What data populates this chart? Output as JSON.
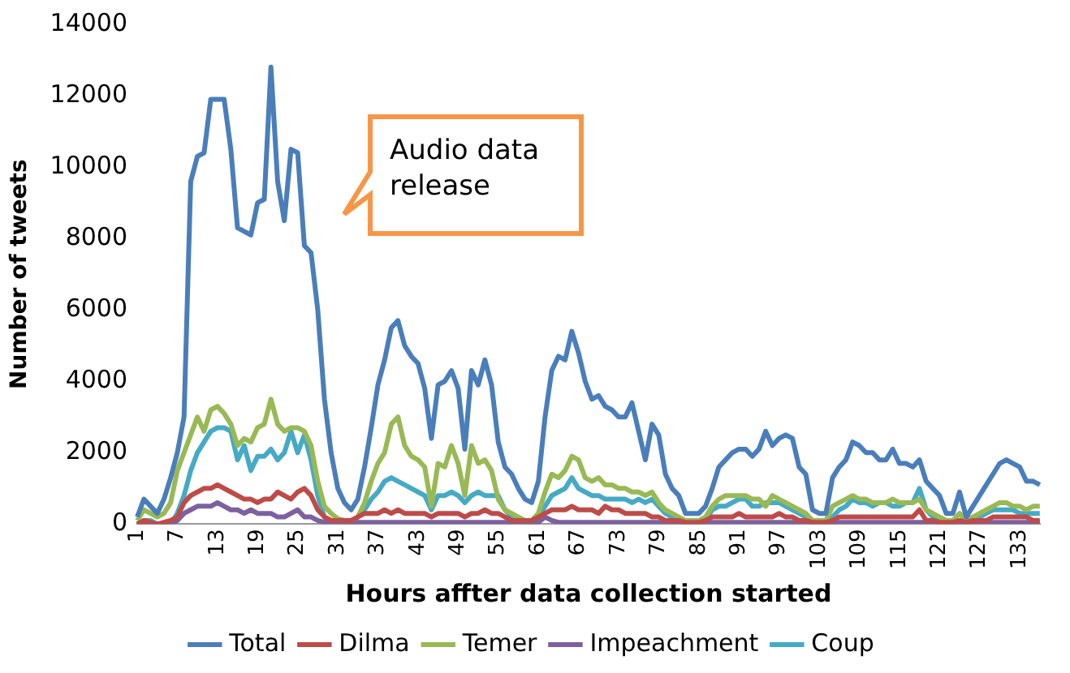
{
  "chart_data": {
    "type": "line",
    "xlabel": "Hours affter data collection started",
    "ylabel": "Number of tweets",
    "categories": [
      "1",
      null,
      null,
      null,
      null,
      null,
      "7",
      null,
      null,
      null,
      null,
      null,
      "13",
      null,
      null,
      null,
      null,
      null,
      "19",
      null,
      null,
      null,
      null,
      null,
      "25",
      null,
      null,
      null,
      null,
      null,
      "31",
      null,
      null,
      null,
      null,
      null,
      "37",
      null,
      null,
      null,
      null,
      null,
      "43",
      null,
      null,
      null,
      null,
      null,
      "49",
      null,
      null,
      null,
      null,
      null,
      "55",
      null,
      null,
      null,
      null,
      null,
      "61",
      null,
      null,
      null,
      null,
      null,
      "67",
      null,
      null,
      null,
      null,
      null,
      "73",
      null,
      null,
      null,
      null,
      null,
      "79",
      null,
      null,
      null,
      null,
      null,
      "85",
      null,
      null,
      null,
      null,
      null,
      "91",
      null,
      null,
      null,
      null,
      null,
      "97",
      null,
      null,
      null,
      null,
      null,
      "103",
      null,
      null,
      null,
      null,
      null,
      "109",
      null,
      null,
      null,
      null,
      null,
      "115",
      null,
      null,
      null,
      null,
      null,
      "121",
      null,
      null,
      null,
      null,
      null,
      "127",
      null,
      null,
      null,
      null,
      null,
      "133",
      null,
      null,
      null
    ],
    "series": [
      {
        "name": "Total",
        "color": "#4a7ebb",
        "values": [
          200,
          700,
          500,
          300,
          700,
          1300,
          2000,
          3000,
          9600,
          10300,
          10400,
          11900,
          11900,
          11900,
          10500,
          8300,
          8200,
          8100,
          9000,
          9100,
          12800,
          9600,
          8500,
          10500,
          10400,
          7800,
          7600,
          6000,
          3500,
          2000,
          1000,
          600,
          400,
          700,
          1600,
          2700,
          3900,
          4600,
          5500,
          5700,
          5000,
          4700,
          4500,
          3800,
          2400,
          3900,
          4000,
          4300,
          3800,
          2100,
          4300,
          3900,
          4600,
          3900,
          2300,
          1600,
          1400,
          1000,
          700,
          600,
          1200,
          3000,
          4300,
          4700,
          4600,
          5400,
          4800,
          4000,
          3500,
          3600,
          3300,
          3200,
          3000,
          3000,
          3400,
          2600,
          1800,
          2800,
          2500,
          1400,
          1000,
          800,
          300,
          300,
          300,
          500,
          1000,
          1600,
          1800,
          2000,
          2100,
          2100,
          1900,
          2100,
          2600,
          2200,
          2400,
          2500,
          2400,
          1600,
          1400,
          400,
          300,
          300,
          1300,
          1600,
          1800,
          2300,
          2200,
          2000,
          2000,
          1800,
          1800,
          2100,
          1700,
          1700,
          1600,
          1800,
          1200,
          1000,
          800,
          300,
          300,
          900,
          200,
          500,
          800,
          1100,
          1400,
          1700,
          1800,
          1700,
          1600,
          1200,
          1200,
          1100
        ]
      },
      {
        "name": "Dilma",
        "color": "#be4b48",
        "values": [
          0,
          100,
          50,
          0,
          50,
          100,
          200,
          600,
          800,
          900,
          1000,
          1000,
          1100,
          1000,
          900,
          800,
          700,
          700,
          600,
          700,
          700,
          900,
          800,
          700,
          900,
          1000,
          800,
          400,
          200,
          100,
          100,
          100,
          100,
          200,
          300,
          300,
          300,
          400,
          300,
          400,
          300,
          300,
          300,
          300,
          200,
          300,
          300,
          300,
          300,
          200,
          300,
          300,
          400,
          300,
          300,
          200,
          100,
          100,
          100,
          100,
          200,
          300,
          400,
          400,
          400,
          500,
          400,
          400,
          400,
          300,
          500,
          400,
          400,
          300,
          300,
          300,
          300,
          200,
          200,
          100,
          100,
          100,
          50,
          50,
          50,
          100,
          200,
          200,
          200,
          200,
          300,
          200,
          200,
          200,
          200,
          200,
          300,
          200,
          200,
          100,
          100,
          50,
          50,
          50,
          100,
          200,
          200,
          200,
          200,
          200,
          200,
          200,
          200,
          200,
          200,
          200,
          200,
          400,
          100,
          100,
          50,
          50,
          50,
          100,
          50,
          100,
          100,
          100,
          200,
          200,
          200,
          200,
          200,
          200,
          100,
          100
        ]
      },
      {
        "name": "Temer",
        "color": "#98b954",
        "values": [
          100,
          400,
          300,
          200,
          300,
          600,
          1500,
          2000,
          2500,
          3000,
          2600,
          3200,
          3300,
          3100,
          2800,
          2200,
          2400,
          2300,
          2700,
          2800,
          3500,
          2800,
          2600,
          2700,
          2700,
          2600,
          2200,
          1200,
          500,
          300,
          150,
          100,
          100,
          200,
          600,
          1200,
          1700,
          2000,
          2800,
          3000,
          2200,
          1900,
          1800,
          1600,
          500,
          1700,
          1600,
          2200,
          1700,
          800,
          2200,
          1700,
          1800,
          1500,
          700,
          400,
          300,
          200,
          100,
          100,
          300,
          900,
          1400,
          1300,
          1500,
          1900,
          1800,
          1300,
          1200,
          1300,
          1100,
          1100,
          1000,
          1000,
          900,
          900,
          800,
          900,
          600,
          400,
          300,
          200,
          100,
          100,
          100,
          200,
          500,
          700,
          800,
          800,
          800,
          800,
          700,
          700,
          500,
          800,
          700,
          600,
          500,
          400,
          300,
          100,
          100,
          100,
          500,
          600,
          700,
          800,
          700,
          700,
          600,
          600,
          600,
          700,
          600,
          600,
          600,
          700,
          400,
          300,
          200,
          100,
          100,
          300,
          100,
          200,
          300,
          400,
          500,
          600,
          600,
          500,
          500,
          400,
          500,
          500
        ]
      },
      {
        "name": "Impeachment",
        "color": "#7d60a0",
        "values": [
          0,
          0,
          0,
          0,
          0,
          0,
          100,
          300,
          400,
          500,
          500,
          500,
          600,
          500,
          400,
          400,
          300,
          400,
          300,
          300,
          300,
          200,
          200,
          300,
          400,
          200,
          200,
          100,
          50,
          50,
          50,
          50,
          50,
          50,
          50,
          50,
          50,
          50,
          50,
          50,
          50,
          50,
          50,
          50,
          50,
          50,
          50,
          50,
          50,
          50,
          50,
          50,
          50,
          50,
          50,
          50,
          50,
          50,
          50,
          50,
          50,
          200,
          100,
          50,
          50,
          50,
          50,
          50,
          50,
          50,
          50,
          50,
          50,
          50,
          50,
          50,
          50,
          50,
          50,
          50,
          50,
          50,
          50,
          50,
          50,
          50,
          50,
          50,
          50,
          50,
          50,
          50,
          50,
          50,
          50,
          50,
          50,
          50,
          50,
          50,
          50,
          50,
          50,
          50,
          50,
          50,
          50,
          50,
          50,
          50,
          50,
          50,
          50,
          50,
          50,
          50,
          50,
          50,
          50,
          50,
          50,
          50,
          50,
          50,
          50,
          50,
          50,
          50,
          50,
          50,
          50,
          50,
          50,
          50,
          50,
          50
        ]
      },
      {
        "name": "Coup",
        "color": "#46aac5",
        "values": [
          0,
          100,
          100,
          0,
          0,
          0,
          300,
          800,
          1500,
          2000,
          2300,
          2600,
          2700,
          2700,
          2600,
          1800,
          2200,
          1500,
          1900,
          1900,
          2100,
          1800,
          2000,
          2600,
          2000,
          2500,
          1800,
          800,
          200,
          100,
          0,
          0,
          0,
          200,
          400,
          700,
          900,
          1200,
          1300,
          1200,
          1100,
          1000,
          900,
          800,
          400,
          800,
          800,
          900,
          800,
          600,
          800,
          900,
          800,
          800,
          800,
          400,
          200,
          100,
          0,
          0,
          200,
          500,
          800,
          900,
          1000,
          1300,
          1000,
          900,
          800,
          800,
          700,
          700,
          700,
          700,
          600,
          700,
          600,
          700,
          500,
          300,
          200,
          100,
          0,
          0,
          0,
          100,
          400,
          500,
          500,
          600,
          700,
          700,
          500,
          500,
          600,
          600,
          600,
          500,
          400,
          300,
          200,
          100,
          0,
          0,
          200,
          400,
          500,
          700,
          600,
          600,
          500,
          600,
          600,
          500,
          500,
          600,
          600,
          1000,
          400,
          200,
          100,
          0,
          0,
          100,
          0,
          100,
          200,
          300,
          400,
          400,
          400,
          400,
          300,
          300,
          300,
          300
        ]
      }
    ],
    "ylim": [
      0,
      14000
    ],
    "yticks": [
      0,
      2000,
      4000,
      6000,
      8000,
      10000,
      12000,
      14000
    ],
    "grid": false,
    "legend": "bottom",
    "marker": "none",
    "annotations": [
      "Audio data release"
    ]
  }
}
